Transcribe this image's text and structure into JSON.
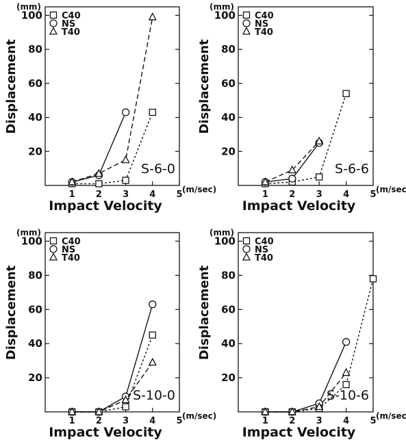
{
  "chart_data": [
    {
      "type": "line",
      "title": "S-6-0",
      "xlabel": "Impact   Velocity",
      "ylabel": "Displacement",
      "y_unit": "(mm)",
      "x_unit": "(m/sec)",
      "xlim": [
        0,
        5
      ],
      "ylim": [
        0,
        105
      ],
      "x_ticks": [
        "1",
        "2",
        "3",
        "4",
        "5"
      ],
      "y_ticks": [
        "20",
        "40",
        "60",
        "80",
        "100"
      ],
      "y_tick_values": [
        20,
        40,
        60,
        80,
        100
      ],
      "grid": false,
      "legend_position": "top-left",
      "series": [
        {
          "name": "C40",
          "marker": "square",
          "line": "dotted",
          "x": [
            1,
            2,
            3,
            4
          ],
          "y": [
            1,
            1,
            3,
            43
          ]
        },
        {
          "name": "NS",
          "marker": "circle",
          "line": "solid",
          "x": [
            1,
            2,
            3
          ],
          "y": [
            2,
            6,
            43
          ]
        },
        {
          "name": "T40",
          "marker": "triangle",
          "line": "dashed",
          "x": [
            1,
            2,
            3,
            4
          ],
          "y": [
            2,
            7,
            15,
            99
          ]
        }
      ]
    },
    {
      "type": "line",
      "title": "S-6-6",
      "xlabel": "Impact   Velocity",
      "ylabel": "Displacement",
      "y_unit": "(mm)",
      "x_unit": "(m/sec)",
      "xlim": [
        0,
        5
      ],
      "ylim": [
        0,
        105
      ],
      "x_ticks": [
        "1",
        "2",
        "3",
        "4",
        "5"
      ],
      "y_ticks": [
        "20",
        "40",
        "60",
        "80",
        "100"
      ],
      "y_tick_values": [
        20,
        40,
        60,
        80,
        100
      ],
      "grid": false,
      "legend_position": "top-left",
      "series": [
        {
          "name": "C40",
          "marker": "square",
          "line": "dotted",
          "x": [
            1,
            2,
            3,
            4
          ],
          "y": [
            1,
            2,
            5,
            54
          ]
        },
        {
          "name": "NS",
          "marker": "circle",
          "line": "solid",
          "x": [
            1,
            2,
            3
          ],
          "y": [
            2,
            4,
            25
          ]
        },
        {
          "name": "T40",
          "marker": "triangle",
          "line": "dashed",
          "x": [
            1,
            2,
            3
          ],
          "y": [
            2,
            9,
            26
          ]
        }
      ]
    },
    {
      "type": "line",
      "title": "S-10-0",
      "xlabel": "Impact   Velocity",
      "ylabel": "Displacement",
      "y_unit": "(mm)",
      "x_unit": "(m/sec)",
      "xlim": [
        0,
        5
      ],
      "ylim": [
        0,
        105
      ],
      "x_ticks": [
        "1",
        "2",
        "3",
        "4",
        "5"
      ],
      "y_ticks": [
        "20",
        "40",
        "60",
        "80",
        "100"
      ],
      "y_tick_values": [
        20,
        40,
        60,
        80,
        100
      ],
      "grid": false,
      "legend_position": "top-left",
      "series": [
        {
          "name": "C40",
          "marker": "square",
          "line": "dotted",
          "x": [
            1,
            2,
            3,
            4
          ],
          "y": [
            0,
            0,
            3,
            45
          ]
        },
        {
          "name": "NS",
          "marker": "circle",
          "line": "solid",
          "x": [
            1,
            2,
            3,
            4
          ],
          "y": [
            0,
            0,
            9,
            63
          ]
        },
        {
          "name": "T40",
          "marker": "triangle",
          "line": "dashed",
          "x": [
            1,
            2,
            3,
            4
          ],
          "y": [
            0,
            0,
            7,
            29
          ]
        }
      ]
    },
    {
      "type": "line",
      "title": "S-10-6",
      "xlabel": "Impact   Velocity",
      "ylabel": "Displacement",
      "y_unit": "(mm)",
      "x_unit": "(m/sec)",
      "xlim": [
        0,
        5
      ],
      "ylim": [
        0,
        105
      ],
      "x_ticks": [
        "1",
        "2",
        "3",
        "4",
        "5"
      ],
      "y_ticks": [
        "20",
        "40",
        "60",
        "80",
        "100"
      ],
      "y_tick_values": [
        20,
        40,
        60,
        80,
        100
      ],
      "grid": false,
      "legend_position": "top-left",
      "series": [
        {
          "name": "C40",
          "marker": "square",
          "line": "dotted",
          "x": [
            1,
            2,
            3,
            4,
            5
          ],
          "y": [
            0,
            0,
            2,
            16,
            78
          ]
        },
        {
          "name": "NS",
          "marker": "circle",
          "line": "solid",
          "x": [
            1,
            2,
            3,
            4
          ],
          "y": [
            0,
            0,
            5,
            41
          ]
        },
        {
          "name": "T40",
          "marker": "triangle",
          "line": "dashed",
          "x": [
            1,
            2,
            3,
            4
          ],
          "y": [
            0,
            0,
            3,
            23
          ]
        }
      ]
    }
  ]
}
